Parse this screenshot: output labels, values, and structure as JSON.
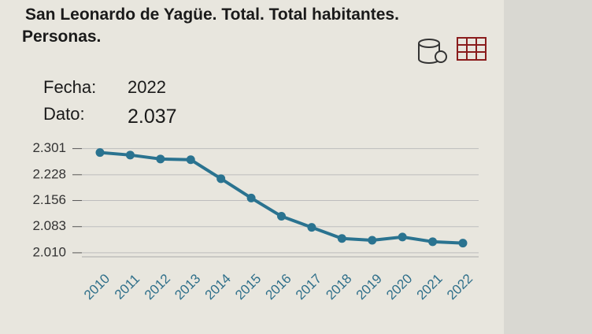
{
  "chart_data": {
    "type": "line",
    "title": [
      "San Leonardo de Yagüe. Total. Total habitantes.",
      "Personas."
    ],
    "readout": {
      "date_label": "Fecha:",
      "date": "2022",
      "value_label": "Dato:",
      "value": "2.037"
    },
    "categories": [
      "2010",
      "2011",
      "2012",
      "2013",
      "2014",
      "2015",
      "2016",
      "2017",
      "2018",
      "2019",
      "2020",
      "2021",
      "2022"
    ],
    "series": [
      {
        "color": "#2a7390",
        "values": [
          2290,
          2283,
          2272,
          2270,
          2217,
          2163,
          2112,
          2081,
          2050,
          2045,
          2054,
          2041,
          2037
        ]
      }
    ],
    "ylim": [
      1990,
      2320
    ],
    "yticks": [
      {
        "value": 2010,
        "label": "2.010"
      },
      {
        "value": 2083,
        "label": "2.083"
      },
      {
        "value": 2156,
        "label": "2.156"
      },
      {
        "value": 2228,
        "label": "2.228"
      },
      {
        "value": 2301,
        "label": "2.301"
      }
    ],
    "grid": true
  }
}
